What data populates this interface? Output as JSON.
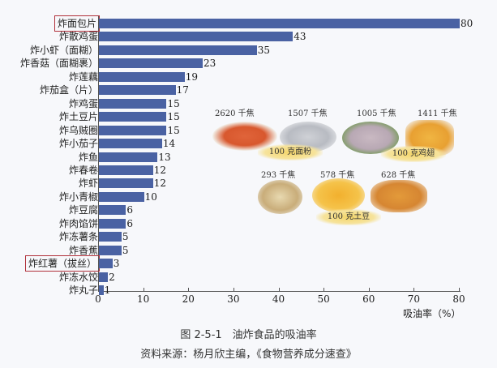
{
  "chart_data": {
    "type": "bar",
    "orientation": "horizontal",
    "title": "图 2-5-1　油炸食品的吸油率",
    "subtitle": "资料来源：杨月欣主编，《食物营养成分速查》",
    "xlabel": "吸油率（%）",
    "ylabel": "",
    "xlim": [
      0,
      80
    ],
    "xticks": [
      0,
      10,
      20,
      30,
      40,
      50,
      60,
      70,
      80
    ],
    "grid": false,
    "bar_color": "#4a62a3",
    "highlight_color": "#b0303a",
    "highlighted": [
      "炸面包片",
      "炸红薯（拔丝）"
    ],
    "categories": [
      "炸面包片",
      "炸散鸡蛋",
      "炸小虾（面糊）",
      "炸香菇（面糊裹）",
      "炸莲藕",
      "炸茄盒（片）",
      "炸鸡蛋",
      "炸土豆片",
      "炸乌贼圈",
      "炸小茄子",
      "炸鱼",
      "炸春卷",
      "炸虾",
      "炸小青椒",
      "炸豆腐",
      "炸肉馅饼",
      "炸冻薯条",
      "炸香蕉",
      "炸红薯（拔丝）",
      "炸冻水饺",
      "炸丸子"
    ],
    "values": [
      80,
      43,
      35,
      23,
      19,
      17,
      15,
      15,
      15,
      14,
      13,
      12,
      12,
      10,
      6,
      6,
      5,
      5,
      3,
      2,
      1
    ]
  },
  "axis": {
    "ticks": [
      "0",
      "10",
      "20",
      "30",
      "40",
      "50",
      "60",
      "70",
      "80"
    ],
    "xlabel": "吸油率（%）"
  },
  "rows": [
    {
      "label": "炸面包片",
      "value": "80"
    },
    {
      "label": "炸散鸡蛋",
      "value": "43"
    },
    {
      "label": "炸小虾（面糊）",
      "value": "35"
    },
    {
      "label": "炸香菇（面糊裹）",
      "value": "23"
    },
    {
      "label": "炸莲藕",
      "value": "19"
    },
    {
      "label": "炸茄盒（片）",
      "value": "17"
    },
    {
      "label": "炸鸡蛋",
      "value": "15"
    },
    {
      "label": "炸土豆片",
      "value": "15"
    },
    {
      "label": "炸乌贼圈",
      "value": "15"
    },
    {
      "label": "炸小茄子",
      "value": "14"
    },
    {
      "label": "炸鱼",
      "value": "13"
    },
    {
      "label": "炸春卷",
      "value": "12"
    },
    {
      "label": "炸虾",
      "value": "12"
    },
    {
      "label": "炸小青椒",
      "value": "10"
    },
    {
      "label": "炸豆腐",
      "value": "6"
    },
    {
      "label": "炸肉馅饼",
      "value": "6"
    },
    {
      "label": "炸冻薯条",
      "value": "5"
    },
    {
      "label": "炸香蕉",
      "value": "5"
    },
    {
      "label": "炸红薯（拔丝）",
      "value": "3"
    },
    {
      "label": "炸冻水饺",
      "value": "2"
    },
    {
      "label": "炸丸子",
      "value": "1"
    }
  ],
  "illustration": {
    "flour": {
      "burst": "100 克面粉",
      "kj": [
        "2620 千焦",
        "1507 千焦"
      ]
    },
    "chicken": {
      "burst": "100 克鸡翅",
      "kj": [
        "1005 千焦",
        "1411 千焦"
      ]
    },
    "potato": {
      "burst": "100 克土豆",
      "kj": [
        "293 千焦",
        "578 千焦",
        "628 千焦"
      ]
    }
  },
  "caption": {
    "title": "图 2-5-1　油炸食品的吸油率",
    "source": "资料来源：杨月欣主编，《食物营养成分速查》"
  }
}
